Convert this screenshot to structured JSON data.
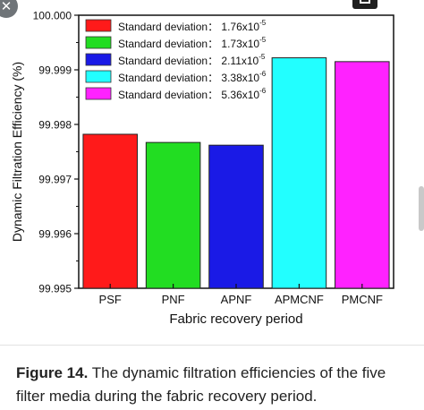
{
  "chart_data": {
    "type": "bar",
    "categories": [
      "PSF",
      "PNF",
      "APNF",
      "APMCNF",
      "PMCNF"
    ],
    "values": [
      99.99782,
      99.99767,
      99.99762,
      99.99922,
      99.99915
    ],
    "colors": [
      "#ff1a1a",
      "#22dd22",
      "#1a1ae6",
      "#22ffff",
      "#ff22ff"
    ],
    "xlabel": "Fabric recovery period",
    "ylabel": "Dynamic Filtration Efficiency (%)",
    "ylim": [
      99.995,
      100.0
    ],
    "yticks": [
      "99.995",
      "99.996",
      "99.997",
      "99.998",
      "99.999",
      "100.000"
    ],
    "grid": false,
    "legend_position": "top-left",
    "legend": [
      {
        "label": "Standard deviation：",
        "value": "1.76x10",
        "exp": "-5",
        "color": "#ff1a1a"
      },
      {
        "label": "Standard deviation：",
        "value": "1.73x10",
        "exp": "-5",
        "color": "#22dd22"
      },
      {
        "label": "Standard deviation：",
        "value": "2.11x10",
        "exp": "-5",
        "color": "#1a1ae6"
      },
      {
        "label": "Standard deviation：",
        "value": "3.38x10",
        "exp": "-6",
        "color": "#22ffff"
      },
      {
        "label": "Standard deviation：",
        "value": "5.36x10",
        "exp": "-6",
        "color": "#ff22ff"
      }
    ]
  },
  "caption": {
    "label": "Figure 14.",
    "text": " The dynamic filtration efficiencies of the five filter media during the fabric recovery period."
  },
  "ui": {
    "close_glyph": "✕"
  }
}
